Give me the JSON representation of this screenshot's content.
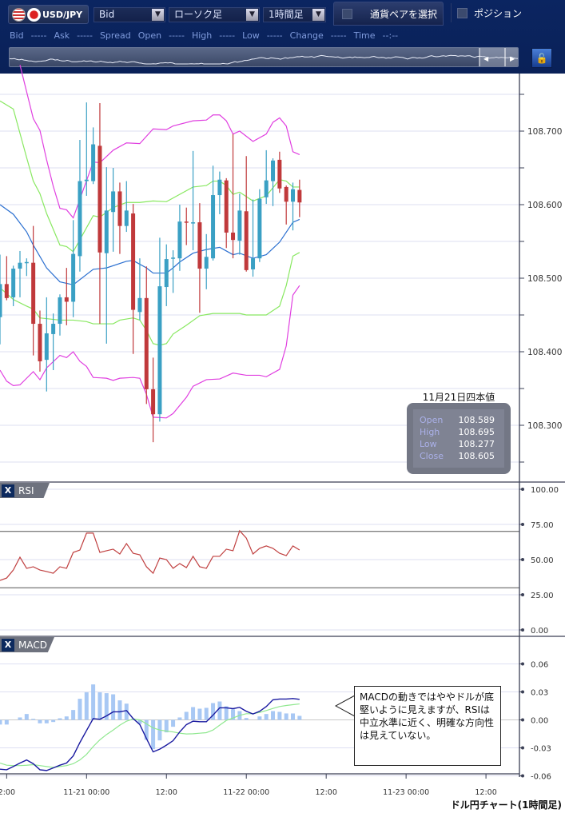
{
  "toolbar": {
    "pair": "USD/JPY",
    "price_type": "Bid",
    "chart_type": "ローソク足",
    "timeframe": "1時間足",
    "select_pair": "通貨ペアを選択",
    "position": "ポジション",
    "icons": {
      "us_flag": "us-flag-icon",
      "jp_flag": "jp-flag-icon",
      "dropdown": "chevron-down-icon",
      "lock": "unlock-resize-icon"
    }
  },
  "quote": [
    {
      "label": "Bid",
      "value": "-----"
    },
    {
      "label": "Ask",
      "value": "-----"
    },
    {
      "label": "Spread",
      "value": ""
    },
    {
      "label": "Open",
      "value": "-----"
    },
    {
      "label": "High",
      "value": "-----"
    },
    {
      "label": "Low",
      "value": "-----"
    },
    {
      "label": "Change",
      "value": "-----"
    },
    {
      "label": "Time",
      "value": "--:--"
    }
  ],
  "info": {
    "title": "11月21日四本値",
    "rows": [
      {
        "k": "Open",
        "v": "108.589"
      },
      {
        "k": "High",
        "v": "108.695"
      },
      {
        "k": "Low",
        "v": "108.277"
      },
      {
        "k": "Close",
        "v": "108.605"
      }
    ]
  },
  "panels": {
    "rsi": "RSI",
    "macd": "MACD",
    "close": "X"
  },
  "note": "MACDの動きではややドルが底堅いように見えますが、RSIは中立水準に近く、明確な方向性は見えていない。",
  "caption": "ドル円チャート(1時間足)",
  "colors": {
    "up": "#3aa0c4",
    "down": "#c0393b",
    "bb2": "#e040e0",
    "bb1": "#88e860",
    "mid": "#2a6fd0",
    "rsi": "#c04040",
    "macd": "#1a1aa0",
    "signal": "#90e890",
    "hist": "#a8c8f4"
  },
  "chart_data": [
    {
      "type": "candlestick",
      "title": "",
      "start": "11-20 11:00",
      "interval": "1h",
      "price_ticks": [
        "108.700",
        "108.600",
        "108.500",
        "108.400",
        "108.300"
      ],
      "x_ticks": [
        {
          "t": -12,
          "label": "2:00"
        },
        {
          "t": 0,
          "label": "11-21 00:00"
        },
        {
          "t": 12,
          "label": "12:00"
        },
        {
          "t": 24,
          "label": "11-22 00:00"
        },
        {
          "t": 36,
          "label": "12:00"
        },
        {
          "t": 48,
          "label": "11-23 00:00"
        },
        {
          "t": 60,
          "label": "12:00"
        }
      ],
      "ohlc": [
        [
          108.447,
          108.532,
          108.41,
          108.492
        ],
        [
          108.492,
          108.53,
          108.47,
          108.473
        ],
        [
          108.474,
          108.517,
          108.462,
          108.513
        ],
        [
          108.513,
          108.537,
          108.474,
          108.521
        ],
        [
          108.522,
          108.527,
          108.503,
          108.522
        ],
        [
          108.521,
          108.571,
          108.395,
          108.438
        ],
        [
          108.438,
          108.456,
          108.373,
          108.387
        ],
        [
          108.389,
          108.474,
          108.346,
          108.425
        ],
        [
          108.424,
          108.452,
          108.375,
          108.438
        ],
        [
          108.438,
          108.478,
          108.422,
          108.474
        ],
        [
          108.474,
          108.514,
          108.436,
          108.468
        ],
        [
          108.468,
          108.579,
          108.447,
          108.533
        ],
        [
          108.53,
          108.688,
          108.509,
          108.632
        ],
        [
          108.632,
          108.739,
          108.612,
          108.634
        ],
        [
          108.632,
          108.705,
          108.628,
          108.682
        ],
        [
          108.68,
          108.738,
          108.438,
          108.535
        ],
        [
          108.534,
          108.651,
          108.411,
          108.592
        ],
        [
          108.59,
          108.65,
          108.536,
          108.618
        ],
        [
          108.618,
          108.63,
          108.533,
          108.571
        ],
        [
          108.571,
          108.632,
          108.563,
          108.592
        ],
        [
          108.588,
          108.601,
          108.397,
          108.457
        ],
        [
          108.454,
          108.527,
          108.443,
          108.473
        ],
        [
          108.473,
          108.516,
          108.329,
          108.349
        ],
        [
          108.349,
          108.392,
          108.277,
          108.315
        ],
        [
          108.315,
          108.555,
          108.305,
          108.489
        ],
        [
          108.488,
          108.546,
          108.462,
          108.526
        ],
        [
          108.527,
          108.538,
          108.48,
          108.528
        ],
        [
          108.527,
          108.6,
          108.51,
          108.577
        ],
        [
          108.577,
          108.596,
          108.545,
          108.576
        ],
        [
          108.576,
          108.673,
          108.538,
          108.576
        ],
        [
          108.576,
          108.602,
          108.453,
          108.513
        ],
        [
          108.513,
          108.56,
          108.485,
          108.529
        ],
        [
          108.527,
          108.653,
          108.524,
          108.613
        ],
        [
          108.613,
          108.645,
          108.587,
          108.634
        ],
        [
          108.633,
          108.636,
          108.541,
          108.562
        ],
        [
          108.562,
          108.696,
          108.527,
          108.552
        ],
        [
          108.551,
          108.615,
          108.532,
          108.592
        ],
        [
          108.591,
          108.666,
          108.509,
          108.511
        ],
        [
          108.512,
          108.607,
          108.502,
          108.527
        ],
        [
          108.527,
          108.621,
          108.522,
          108.608
        ],
        [
          108.61,
          108.674,
          108.601,
          108.633
        ],
        [
          108.632,
          108.663,
          108.598,
          108.66
        ],
        [
          108.661,
          108.672,
          108.616,
          108.622
        ],
        [
          108.624,
          108.626,
          108.573,
          108.604
        ],
        [
          108.604,
          108.63,
          108.565,
          108.621
        ],
        [
          108.62,
          108.634,
          108.583,
          108.603
        ]
      ],
      "bands": {
        "upper2": [
          [
            3,
            108.79
          ],
          [
            5,
            108.717
          ],
          [
            6,
            108.701
          ],
          [
            7,
            108.661
          ],
          [
            8,
            108.625
          ],
          [
            9,
            108.595
          ],
          [
            10,
            108.593
          ],
          [
            11,
            108.582
          ],
          [
            14,
            108.658
          ],
          [
            15,
            108.657
          ],
          [
            17,
            108.674
          ],
          [
            19,
            108.684
          ],
          [
            21,
            108.683
          ],
          [
            23,
            108.703
          ],
          [
            25,
            108.702
          ],
          [
            26,
            108.707
          ],
          [
            29,
            108.714
          ],
          [
            31,
            108.715
          ],
          [
            32,
            108.722
          ],
          [
            33,
            108.722
          ],
          [
            34,
            108.714
          ],
          [
            35,
            108.696
          ],
          [
            36,
            108.7
          ],
          [
            38,
            108.686
          ],
          [
            40,
            108.696
          ],
          [
            41,
            108.712
          ],
          [
            42,
            108.718
          ],
          [
            43,
            108.707
          ],
          [
            44,
            108.672
          ],
          [
            45,
            108.668
          ]
        ],
        "upper1": [
          [
            0,
            108.741
          ],
          [
            2,
            108.73
          ],
          [
            4,
            108.664
          ],
          [
            5,
            108.632
          ],
          [
            6,
            108.615
          ],
          [
            7,
            108.588
          ],
          [
            9,
            108.545
          ],
          [
            10,
            108.543
          ],
          [
            11,
            108.536
          ],
          [
            14,
            108.585
          ],
          [
            15,
            108.583
          ],
          [
            17,
            108.596
          ],
          [
            19,
            108.603
          ],
          [
            21,
            108.603
          ],
          [
            23,
            108.605
          ],
          [
            25,
            108.604
          ],
          [
            27,
            108.614
          ],
          [
            29,
            108.624
          ],
          [
            31,
            108.626
          ],
          [
            32,
            108.632
          ],
          [
            33,
            108.632
          ],
          [
            34,
            108.626
          ],
          [
            35,
            108.614
          ],
          [
            36,
            108.617
          ],
          [
            38,
            108.605
          ],
          [
            40,
            108.612
          ],
          [
            42,
            108.634
          ],
          [
            43,
            108.632
          ],
          [
            44,
            108.624
          ],
          [
            45,
            108.624
          ]
        ],
        "middle": [
          [
            0,
            108.6
          ],
          [
            2,
            108.587
          ],
          [
            4,
            108.563
          ],
          [
            5,
            108.545
          ],
          [
            7,
            108.514
          ],
          [
            9,
            108.495
          ],
          [
            11,
            108.491
          ],
          [
            14,
            108.512
          ],
          [
            16,
            108.514
          ],
          [
            19,
            108.523
          ],
          [
            20,
            108.524
          ],
          [
            22,
            108.514
          ],
          [
            23,
            108.507
          ],
          [
            25,
            108.507
          ],
          [
            26,
            108.514
          ],
          [
            27,
            108.522
          ],
          [
            29,
            108.534
          ],
          [
            31,
            108.539
          ],
          [
            33,
            108.542
          ],
          [
            34,
            108.537
          ],
          [
            35,
            108.532
          ],
          [
            36,
            108.534
          ],
          [
            38,
            108.527
          ],
          [
            40,
            108.532
          ],
          [
            42,
            108.549
          ],
          [
            44,
            108.576
          ],
          [
            45,
            108.58
          ]
        ],
        "lower1": [
          [
            0,
            108.487
          ],
          [
            2,
            108.471
          ],
          [
            4,
            108.462
          ],
          [
            5,
            108.458
          ],
          [
            6,
            108.446
          ],
          [
            9,
            108.443
          ],
          [
            11,
            108.443
          ],
          [
            13,
            108.441
          ],
          [
            14,
            108.438
          ],
          [
            17,
            108.438
          ],
          [
            18,
            108.443
          ],
          [
            20,
            108.446
          ],
          [
            21,
            108.443
          ],
          [
            22,
            108.429
          ],
          [
            23,
            108.411
          ],
          [
            24,
            108.409
          ],
          [
            25,
            108.411
          ],
          [
            26,
            108.424
          ],
          [
            28,
            108.436
          ],
          [
            30,
            108.449
          ],
          [
            32,
            108.452
          ],
          [
            36,
            108.452
          ],
          [
            37,
            108.45
          ],
          [
            40,
            108.45
          ],
          [
            42,
            108.462
          ],
          [
            43,
            108.49
          ],
          [
            44,
            108.53
          ],
          [
            45,
            108.535
          ]
        ],
        "lower2": [
          [
            0,
            108.375
          ],
          [
            1,
            108.36
          ],
          [
            2,
            108.354
          ],
          [
            3,
            108.355
          ],
          [
            4,
            108.364
          ],
          [
            5,
            108.373
          ],
          [
            6,
            108.362
          ],
          [
            7,
            108.378
          ],
          [
            9,
            108.395
          ],
          [
            10,
            108.392
          ],
          [
            11,
            108.4
          ],
          [
            12,
            108.387
          ],
          [
            13,
            108.38
          ],
          [
            14,
            108.365
          ],
          [
            16,
            108.364
          ],
          [
            17,
            108.361
          ],
          [
            18,
            108.364
          ],
          [
            20,
            108.365
          ],
          [
            21,
            108.364
          ],
          [
            22,
            108.342
          ],
          [
            23,
            108.311
          ],
          [
            25,
            108.31
          ],
          [
            26,
            108.316
          ],
          [
            28,
            108.338
          ],
          [
            29,
            108.353
          ],
          [
            31,
            108.362
          ],
          [
            33,
            108.363
          ],
          [
            35,
            108.371
          ],
          [
            37,
            108.368
          ],
          [
            39,
            108.368
          ],
          [
            40,
            108.366
          ],
          [
            42,
            108.376
          ],
          [
            43,
            108.408
          ],
          [
            44,
            108.477
          ],
          [
            45,
            108.49
          ]
        ]
      },
      "ylim": [
        108.24,
        108.8
      ]
    },
    {
      "type": "line",
      "title": "RSI",
      "ticks": [
        "100.00",
        "75.00",
        "50.00",
        "25.00",
        "0.00"
      ],
      "levels": [
        70,
        30
      ],
      "ylim": [
        0,
        100
      ],
      "values": [
        35.2,
        36.9,
        42.6,
        51.7,
        43.8,
        44.9,
        42.6,
        41.5,
        40.3,
        44.9,
        43.8,
        55.1,
        56.8,
        68.8,
        68.8,
        55.1,
        56.3,
        57.4,
        54.0,
        61.4,
        54.5,
        53.4,
        44.9,
        40.3,
        51.1,
        50.0,
        43.8,
        47.2,
        44.3,
        52.3,
        44.9,
        43.8,
        52.3,
        52.3,
        57.4,
        56.3,
        70.5,
        65.3,
        54.0,
        58.0,
        59.7,
        58.0,
        54.5,
        52.8,
        59.7,
        56.8
      ]
    },
    {
      "type": "bar+line",
      "title": "MACD",
      "ticks": [
        "0.06",
        "0.03",
        "0.00",
        "-0.03",
        "-0.06"
      ],
      "ylim": [
        -0.06,
        0.06
      ],
      "histogram": [
        -0.005,
        -0.005,
        0,
        0.0026,
        0.0063,
        0.0011,
        -0.0037,
        -0.0037,
        -0.0023,
        0.0017,
        0.0037,
        0.0106,
        0.0226,
        0.0295,
        0.038,
        0.0295,
        0.0286,
        0.0274,
        0.0209,
        0.0174,
        0.0014,
        -0.0043,
        -0.0214,
        -0.0314,
        -0.022,
        -0.0134,
        -0.0074,
        0.0026,
        0.0086,
        0.0137,
        0.012,
        0.0129,
        0.018,
        0.0197,
        0.0146,
        0.0114,
        0.0094,
        0.002,
        0,
        0.0037,
        0.0063,
        0.0094,
        0.0086,
        0.0069,
        0.0069,
        0.0043
      ],
      "macd": [
        -0.0529,
        -0.0535,
        -0.05,
        -0.0463,
        -0.043,
        -0.047,
        -0.0535,
        -0.0543,
        -0.0515,
        -0.0486,
        -0.0463,
        -0.0386,
        -0.0243,
        -0.0114,
        0.0014,
        0.0006,
        0.0043,
        0.0086,
        0.0086,
        0.01,
        0.0014,
        -0.005,
        -0.02,
        -0.0343,
        -0.0314,
        -0.0271,
        -0.0223,
        -0.0129,
        -0.0051,
        -0.0014,
        -0.002,
        -0.002,
        0.0051,
        0.0129,
        0.0129,
        0.012,
        0.0134,
        0.0092,
        0.0063,
        0.0092,
        0.0143,
        0.0215,
        0.0223,
        0.0223,
        0.0229,
        0.022
      ],
      "signal": [
        -0.0463,
        -0.0486,
        -0.049,
        -0.049,
        -0.0486,
        -0.048,
        -0.049,
        -0.05,
        -0.051,
        -0.05,
        -0.049,
        -0.047,
        -0.043,
        -0.037,
        -0.0286,
        -0.0214,
        -0.0157,
        -0.0109,
        -0.0057,
        -0.0014,
        0.0009,
        0,
        -0.0043,
        -0.0086,
        -0.0109,
        -0.012,
        -0.0129,
        -0.0143,
        -0.0151,
        -0.0149,
        -0.0143,
        -0.0137,
        -0.0109,
        -0.0057,
        -0.0006,
        0.002,
        0.0049,
        0.0066,
        0.0066,
        0.008,
        0.01,
        0.0123,
        0.0143,
        0.0154,
        0.0163,
        0.0171
      ]
    }
  ]
}
